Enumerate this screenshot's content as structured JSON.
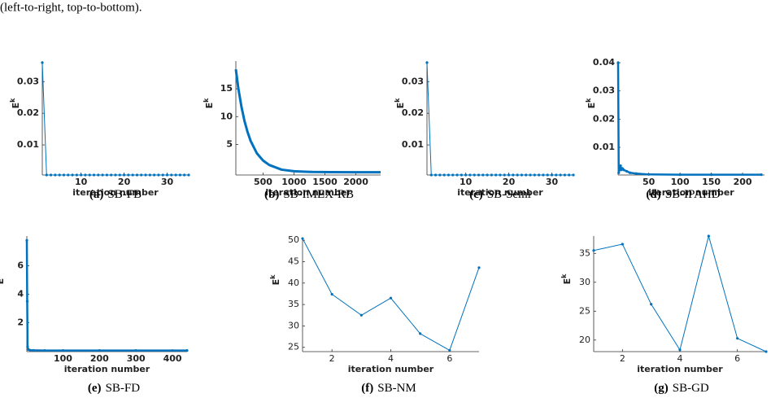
{
  "caption_fragment": "(left-to-right, top-to-bottom).",
  "chart_data": [
    {
      "type": "line",
      "xlabel": "iteration number",
      "ylabel": "E",
      "ylabel_superscript": "k",
      "subcaption_label": "(a)",
      "subcaption": "SB-FB",
      "color": "#0072bd",
      "markers": true,
      "line_width": 1,
      "bold_ticks": true,
      "x": [
        1,
        2,
        3,
        4,
        5,
        6,
        7,
        8,
        9,
        10,
        11,
        12,
        13,
        14,
        15,
        16,
        17,
        18,
        19,
        20,
        21,
        22,
        23,
        24,
        25,
        26,
        27,
        28,
        29,
        30,
        31,
        32,
        33,
        34,
        35
      ],
      "values": [
        0.036,
        0.0005,
        0.0005,
        0.0005,
        0.0005,
        0.0005,
        0.0005,
        0.0005,
        0.0005,
        0.0005,
        0.0005,
        0.0005,
        0.0005,
        0.0005,
        0.0005,
        0.0005,
        0.0005,
        0.0005,
        0.0005,
        0.0005,
        0.0005,
        0.0005,
        0.0005,
        0.0005,
        0.0005,
        0.0005,
        0.0005,
        0.0005,
        0.0005,
        0.0005,
        0.0005,
        0.0005,
        0.0005,
        0.0005,
        0.0005
      ],
      "xlim": [
        1,
        35
      ],
      "xticks": [
        10,
        20,
        30
      ],
      "ylim": [
        0.0005,
        0.0365
      ],
      "yticks": [
        0.01,
        0.02,
        0.03
      ]
    },
    {
      "type": "line",
      "xlabel": "iteration number",
      "ylabel": "E",
      "ylabel_superscript": "k",
      "subcaption_label": "(b)",
      "subcaption": "SB-IMEX-RB",
      "color": "#0072bd",
      "markers": false,
      "line_width": 3,
      "bold_ticks": true,
      "x": [
        60,
        100,
        150,
        200,
        250,
        300,
        400,
        500,
        600,
        800,
        1000,
        1300,
        1600,
        2000,
        2400
      ],
      "values": [
        18.5,
        15.1,
        11.8,
        9.2,
        7.2,
        5.6,
        3.4,
        2.1,
        1.3,
        0.46,
        0.17,
        0.04,
        0.01,
        0,
        0
      ],
      "xlim": [
        60,
        2400
      ],
      "xticks": [
        500,
        1000,
        1500,
        2000
      ],
      "ylim": [
        -0.5,
        20
      ],
      "yticks": [
        5,
        10,
        15
      ]
    },
    {
      "type": "line",
      "xlabel": "iteration number",
      "ylabel": "E",
      "ylabel_superscript": "k",
      "subcaption_label": "(c)",
      "subcaption": "SB-Semi",
      "color": "#0072bd",
      "markers": true,
      "line_width": 1,
      "bold_ticks": true,
      "x": [
        1,
        2,
        3,
        4,
        5,
        6,
        7,
        8,
        9,
        10,
        11,
        12,
        13,
        14,
        15,
        16,
        17,
        18,
        19,
        20,
        21,
        22,
        23,
        24,
        25,
        26,
        27,
        28,
        29,
        30,
        31,
        32,
        33,
        34,
        35
      ],
      "values": [
        0.036,
        0.0005,
        0.0005,
        0.0005,
        0.0005,
        0.0005,
        0.0005,
        0.0005,
        0.0005,
        0.0005,
        0.0005,
        0.0005,
        0.0005,
        0.0005,
        0.0005,
        0.0005,
        0.0005,
        0.0005,
        0.0005,
        0.0005,
        0.0005,
        0.0005,
        0.0005,
        0.0005,
        0.0005,
        0.0005,
        0.0005,
        0.0005,
        0.0005,
        0.0005,
        0.0005,
        0.0005,
        0.0005,
        0.0005,
        0.0005
      ],
      "xlim": [
        1,
        35
      ],
      "xticks": [
        10,
        20,
        30
      ],
      "ylim": [
        0.0005,
        0.0365
      ],
      "yticks": [
        0.01,
        0.02,
        0.03
      ]
    },
    {
      "type": "line",
      "xlabel": "iteration number",
      "ylabel": "E",
      "ylabel_superscript": "k",
      "subcaption_label": "(d)",
      "subcaption": "SB-IPAHD",
      "color": "#0072bd",
      "markers": true,
      "line_width": 2.5,
      "bold_ticks": true,
      "x": [
        1,
        2,
        3,
        4,
        5,
        6,
        8,
        10,
        15,
        20,
        30,
        50,
        100,
        150,
        230
      ],
      "values": [
        0.04,
        0.001,
        0.003,
        0.002,
        0.0035,
        0.002,
        0.0025,
        0.002,
        0.0015,
        0.001,
        0.0007,
        0.0004,
        0.0003,
        0.0003,
        0.0003
      ],
      "xlim": [
        1,
        235
      ],
      "xticks": [
        50,
        100,
        150,
        200
      ],
      "ylim": [
        0.0002,
        0.0406
      ],
      "yticks": [
        0.01,
        0.02,
        0.03,
        0.04
      ]
    },
    {
      "type": "line",
      "xlabel": "iteration number",
      "ylabel": "E",
      "ylabel_superscript": "k",
      "subcaption_label": "(e)",
      "subcaption": "SB-FD",
      "color": "#0072bd",
      "markers": true,
      "line_width": 2.5,
      "bold_ticks": true,
      "x": [
        1,
        2,
        3,
        5,
        10,
        20,
        50,
        100,
        200,
        300,
        440
      ],
      "values": [
        7.8,
        3.5,
        0.3,
        0.1,
        0.05,
        0.04,
        0.03,
        0.03,
        0.03,
        0.03,
        0.03
      ],
      "xlim": [
        1,
        440
      ],
      "xticks": [
        100,
        200,
        300,
        400
      ],
      "ylim": [
        -0.05,
        8.1
      ],
      "yticks": [
        2,
        4,
        6
      ]
    },
    {
      "type": "line",
      "xlabel": "iteration number",
      "ylabel": "E",
      "ylabel_superscript": "k",
      "subcaption_label": "(f)",
      "subcaption": "SB-NM",
      "color": "#0072bd",
      "markers": true,
      "line_width": 1,
      "bold_ticks": false,
      "x": [
        1,
        2,
        3,
        4,
        5,
        6,
        7
      ],
      "values": [
        50.4,
        37.4,
        32.5,
        36.5,
        28.2,
        24.3,
        43.6
      ],
      "xlim": [
        1,
        7
      ],
      "xticks": [
        2,
        4,
        6
      ],
      "ylim": [
        24,
        50.6
      ],
      "yticks": [
        25,
        30,
        35,
        40,
        45,
        50
      ]
    },
    {
      "type": "line",
      "xlabel": "iteration number",
      "ylabel": "E",
      "ylabel_superscript": "k",
      "subcaption_label": "(g)",
      "subcaption": "SB-GD",
      "color": "#0072bd",
      "markers": true,
      "line_width": 1,
      "bold_ticks": false,
      "x": [
        1,
        2,
        3,
        4,
        5,
        6,
        7
      ],
      "values": [
        35.5,
        36.6,
        26.2,
        18.3,
        38,
        20.3,
        18
      ],
      "xlim": [
        1,
        7
      ],
      "xticks": [
        2,
        4,
        6
      ],
      "ylim": [
        18,
        38
      ],
      "yticks": [
        20,
        25,
        30,
        35
      ]
    }
  ]
}
